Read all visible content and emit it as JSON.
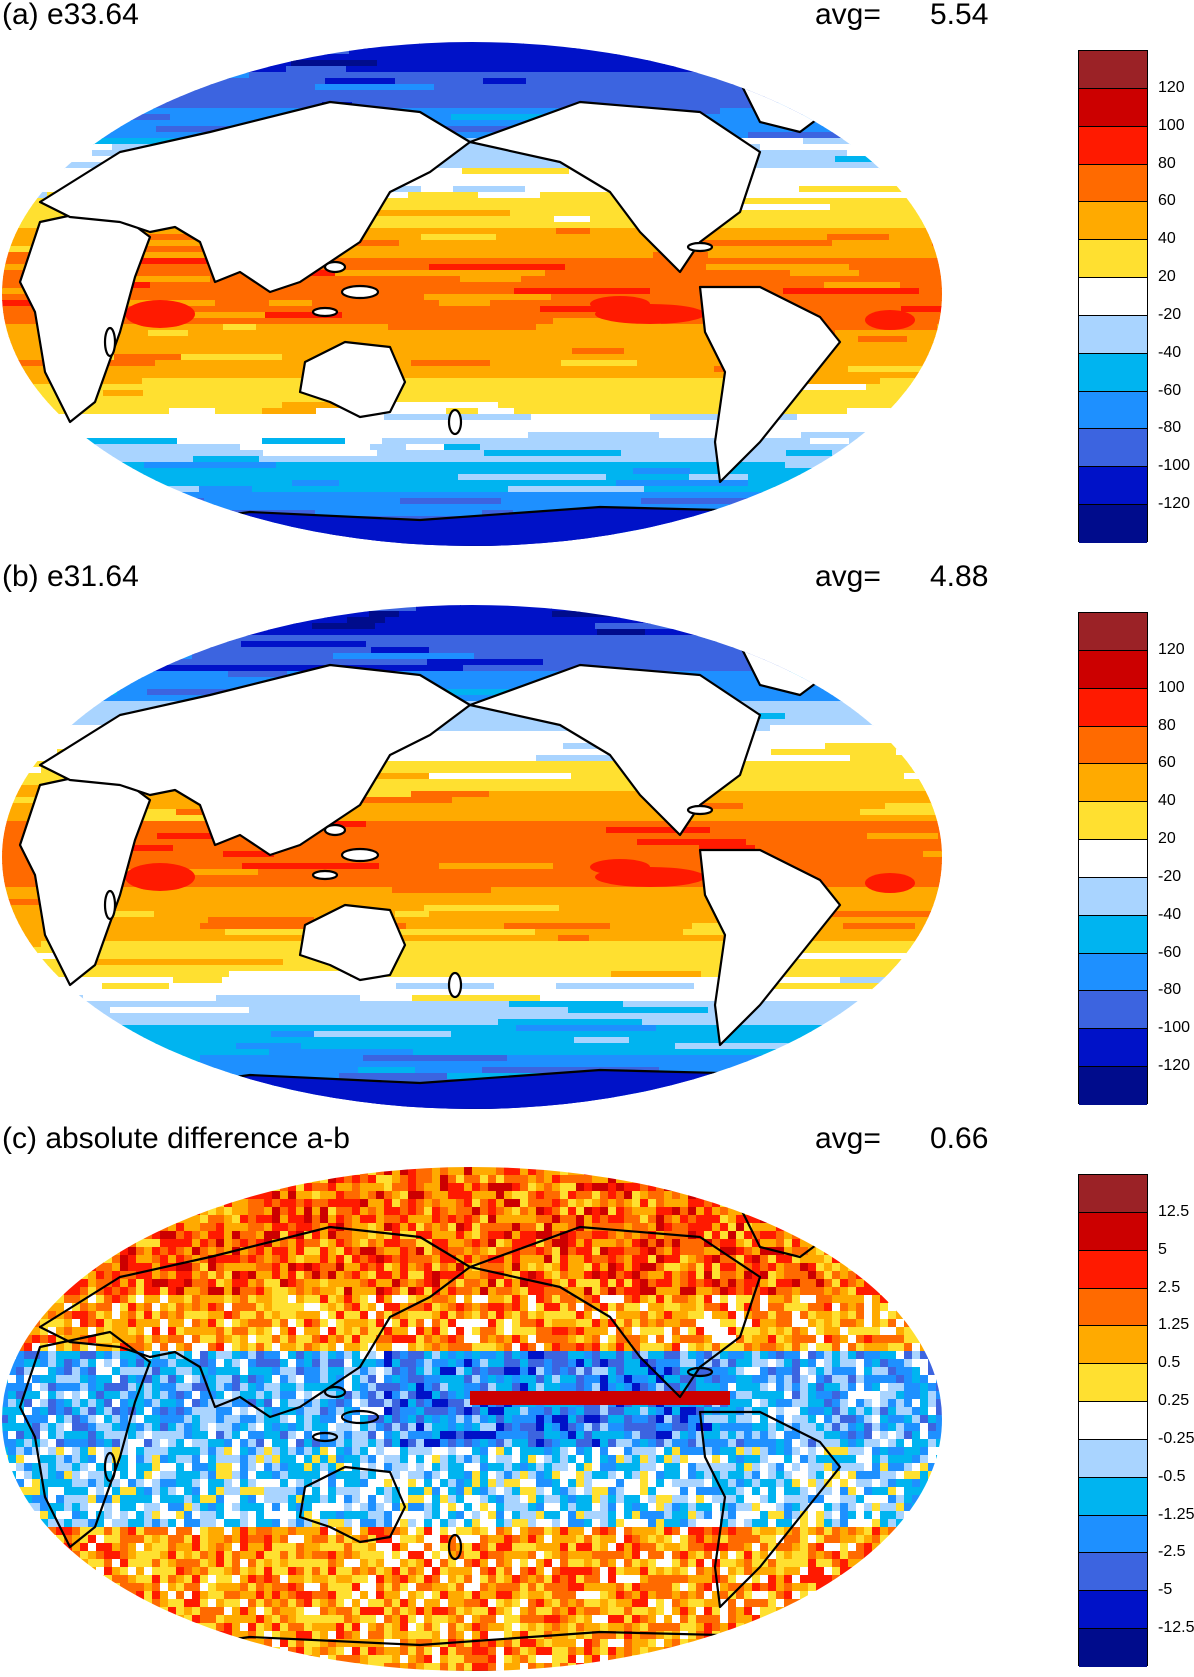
{
  "panels": [
    {
      "title": "(a) e33.64",
      "avg_label": "avg=",
      "avg_value": "5.54",
      "colorbar_labels": [
        "120",
        "100",
        "80",
        "60",
        "40",
        "20",
        "-20",
        "-40",
        "-60",
        "-80",
        "-100",
        "-120"
      ]
    },
    {
      "title": "(b) e31.64",
      "avg_label": "avg=",
      "avg_value": "4.88",
      "colorbar_labels": [
        "120",
        "100",
        "80",
        "60",
        "40",
        "20",
        "-20",
        "-40",
        "-60",
        "-80",
        "-100",
        "-120"
      ]
    },
    {
      "title": "(c) absolute difference a-b",
      "avg_label": "avg=",
      "avg_value": "0.66",
      "colorbar_labels": [
        "12.5",
        "5",
        "2.5",
        "1.25",
        "0.5",
        "0.25",
        "-0.25",
        "-0.5",
        "-1.25",
        "-2.5",
        "-5",
        "-12.5"
      ]
    }
  ],
  "colors": {
    "palette": [
      "#9b2226",
      "#cc0000",
      "#ff1a00",
      "#ff6a00",
      "#ffaa00",
      "#ffe030",
      "#ffffff",
      "#a9d4ff",
      "#00b4f0",
      "#1e90ff",
      "#3c64e0",
      "#0012c8",
      "#000c8c"
    ]
  }
}
